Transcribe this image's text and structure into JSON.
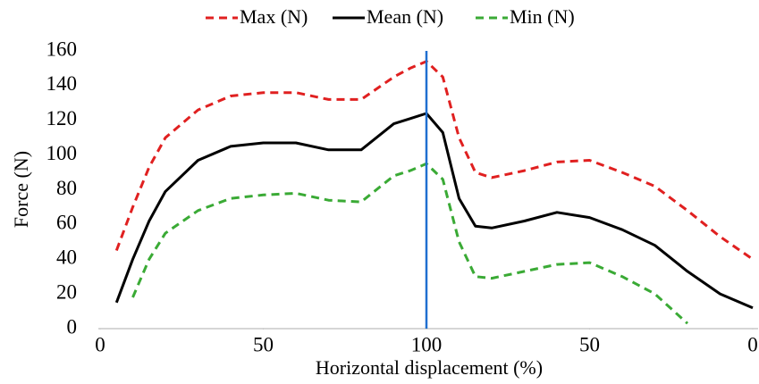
{
  "chart_data": {
    "type": "line",
    "x_label": "Horizontal displacement (%)",
    "y_label": "Force (N)",
    "x": [
      5,
      10,
      15,
      20,
      30,
      40,
      50,
      60,
      70,
      80,
      90,
      95,
      100,
      105,
      110,
      115,
      120,
      130,
      140,
      150,
      160,
      170,
      180,
      190,
      200
    ],
    "series": [
      {
        "name": "Max (N)",
        "color": "#e02020",
        "dash": true,
        "values": [
          45,
          70,
          93,
          110,
          126,
          134,
          136,
          136,
          132,
          132,
          145,
          150,
          154,
          145,
          110,
          90,
          87,
          91,
          96,
          97,
          90,
          82,
          68,
          53,
          40
        ]
      },
      {
        "name": "Mean (N)",
        "color": "#000000",
        "dash": false,
        "values": [
          15,
          40,
          62,
          79,
          97,
          105,
          107,
          107,
          103,
          103,
          118,
          121,
          124,
          113,
          75,
          59,
          58,
          62,
          67,
          64,
          57,
          48,
          33,
          20,
          12
        ]
      },
      {
        "name": "Min (N)",
        "color": "#3aaa35",
        "dash": true,
        "values": [
          null,
          18,
          40,
          55,
          68,
          75,
          77,
          78,
          74,
          73,
          88,
          91,
          95,
          86,
          50,
          30,
          29,
          33,
          37,
          38,
          30,
          20,
          3,
          null,
          null
        ]
      }
    ],
    "vline": {
      "value": 100,
      "color": "#1f6fd0"
    },
    "xlim": [
      0,
      200
    ],
    "xticks": [
      0,
      50,
      100,
      {
        "value": 150,
        "label": "50"
      },
      {
        "value": 200,
        "label": "0"
      }
    ],
    "ylim": [
      0,
      160
    ],
    "yticks": [
      0,
      20,
      40,
      60,
      80,
      100,
      120,
      140,
      160
    ],
    "legend": "top",
    "grid": false
  }
}
